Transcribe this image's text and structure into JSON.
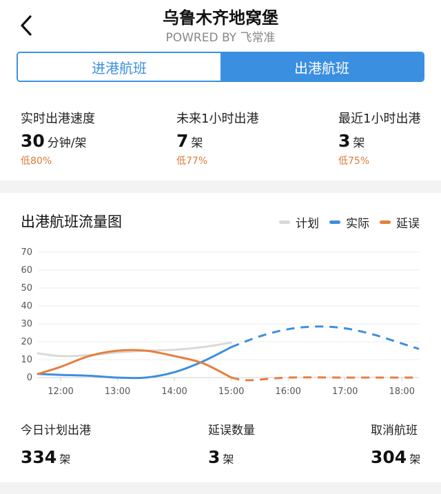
{
  "header": {
    "title": "乌鲁木齐地窝堡",
    "subtitle": "POWRED BY 飞常准"
  },
  "tabs": [
    {
      "label": "进港航班",
      "active": false
    },
    {
      "label": "出港航班",
      "active": true
    }
  ],
  "stats": [
    {
      "label": "实时出港速度",
      "value": "30",
      "unit": "分钟/架",
      "compare": "低80%"
    },
    {
      "label": "未来1小时出港",
      "value": "7",
      "unit": "架",
      "compare": "低77%"
    },
    {
      "label": "最近1小时出港",
      "value": "3",
      "unit": "架",
      "compare": "低75%"
    }
  ],
  "chart_section": {
    "title": "出港航班流量图"
  },
  "chart_data": {
    "type": "line",
    "x_ticks": [
      "12:00",
      "13:00",
      "14:00",
      "15:00",
      "16:00",
      "17:00",
      "18:00"
    ],
    "ylim": [
      0,
      70
    ],
    "y_ticks": [
      0,
      10,
      20,
      30,
      40,
      50,
      60,
      70
    ],
    "legend_position": "top-right",
    "series": [
      {
        "name": "计划",
        "color": "#d9d9d9",
        "x": [
          11.6,
          12.0,
          12.5,
          13.0,
          13.5,
          14.0,
          14.5,
          15.0
        ],
        "y": [
          13.5,
          12,
          12.5,
          14,
          15,
          15.5,
          17,
          19.5
        ]
      },
      {
        "name": "实际",
        "color": "#3b8fe0",
        "x": [
          11.6,
          12.0,
          12.5,
          13.0,
          13.5,
          14.0,
          14.5,
          15.0
        ],
        "y": [
          2,
          1.5,
          1,
          0,
          0,
          3,
          9,
          17
        ],
        "forecast_x": [
          15.0,
          15.5,
          16.0,
          16.5,
          17.0,
          17.5,
          18.0,
          18.3
        ],
        "forecast_y": [
          17,
          23,
          27,
          28.5,
          27.5,
          24,
          19,
          16
        ]
      },
      {
        "name": "延误",
        "color": "#e67e3e",
        "x": [
          11.6,
          12.0,
          12.5,
          13.0,
          13.5,
          14.0,
          14.5,
          15.0
        ],
        "y": [
          2,
          6,
          12,
          15,
          15,
          12,
          8,
          0
        ],
        "forecast_x": [
          15.0,
          15.3,
          16.0,
          17.0,
          18.0,
          18.3
        ],
        "forecast_y": [
          0,
          -1.5,
          0,
          0,
          0,
          0
        ]
      }
    ]
  },
  "summary": [
    {
      "label": "今日计划出港",
      "value": "334",
      "unit": "架"
    },
    {
      "label": "延误数量",
      "value": "3",
      "unit": "架"
    },
    {
      "label": "取消航班",
      "value": "304",
      "unit": "架"
    }
  ]
}
